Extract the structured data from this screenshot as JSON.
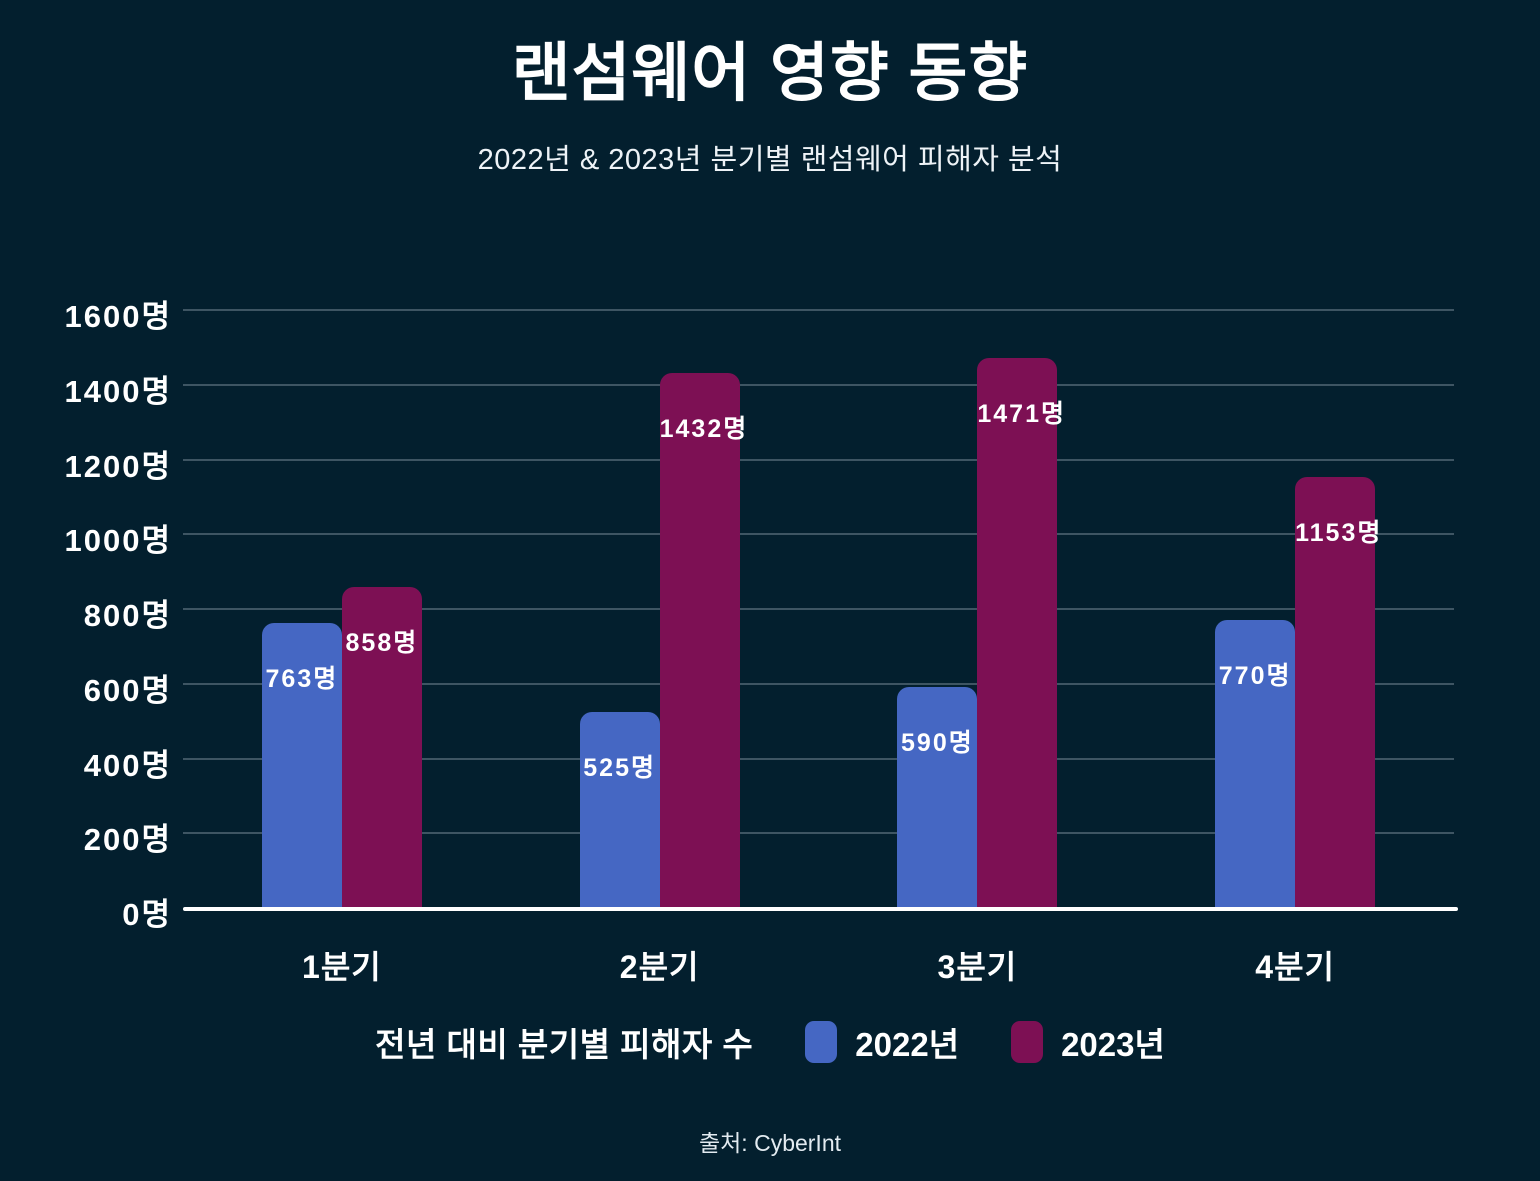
{
  "title": "랜섬웨어 영향 동향",
  "subtitle": "2022년 & 2023년 분기별 랜섬웨어 피해자 분석",
  "source": "출처: CyberInt",
  "colors": {
    "background": "#031f2e",
    "year2022": "#4567c3",
    "year2023": "#7d1054",
    "axis": "#ffffff",
    "grid": "rgba(214,228,237,0.28)"
  },
  "legend": {
    "label": "전년 대비 분기별 피해자 수",
    "items": [
      {
        "name": "2022년",
        "color": "#4567c3"
      },
      {
        "name": "2023년",
        "color": "#7d1054"
      }
    ]
  },
  "chart_data": {
    "type": "bar",
    "title": "랜섬웨어 영향 동향",
    "subtitle": "2022년 & 2023년 분기별 랜섬웨어 피해자 분석",
    "categories": [
      "1분기",
      "2분기",
      "3분기",
      "4분기"
    ],
    "series": [
      {
        "name": "2022년",
        "color": "#4567c3",
        "values": [
          763,
          525,
          590,
          770
        ]
      },
      {
        "name": "2023년",
        "color": "#7d1054",
        "values": [
          858,
          1432,
          1471,
          1153
        ]
      }
    ],
    "value_suffix": "명",
    "y_ticks": [
      0,
      200,
      400,
      600,
      800,
      1000,
      1200,
      1400,
      1600
    ],
    "ylim": [
      0,
      1600
    ],
    "grid": true,
    "legend_position": "bottom",
    "xlabel": "",
    "ylabel": ""
  }
}
